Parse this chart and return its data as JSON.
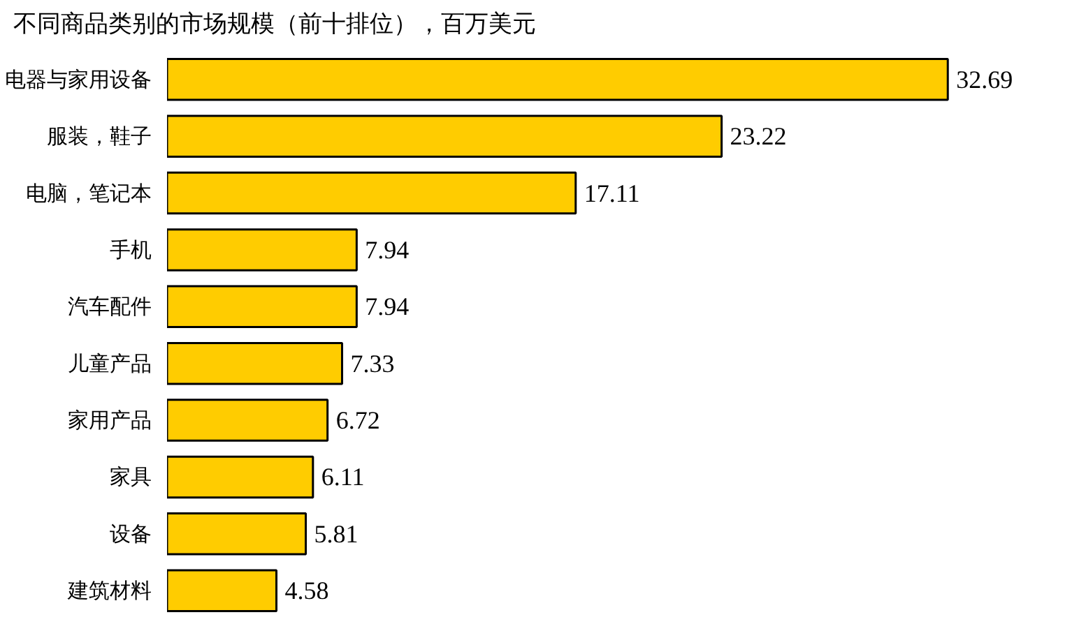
{
  "chart_data": {
    "type": "bar",
    "orientation": "horizontal",
    "title": "不同商品类别的市场规模（前十排位），百万美元",
    "categories": [
      "电器与家用设备",
      "服装，鞋子",
      "电脑，笔记本",
      "手机",
      "汽车配件",
      "儿童产品",
      "家用产品",
      "家具",
      "设备",
      "建筑材料"
    ],
    "values": [
      32.69,
      23.22,
      17.11,
      7.94,
      7.94,
      7.33,
      6.72,
      6.11,
      5.81,
      4.58
    ],
    "color": "#ffcc00",
    "data_labels": true,
    "grid": false,
    "tick_labels": "y"
  }
}
